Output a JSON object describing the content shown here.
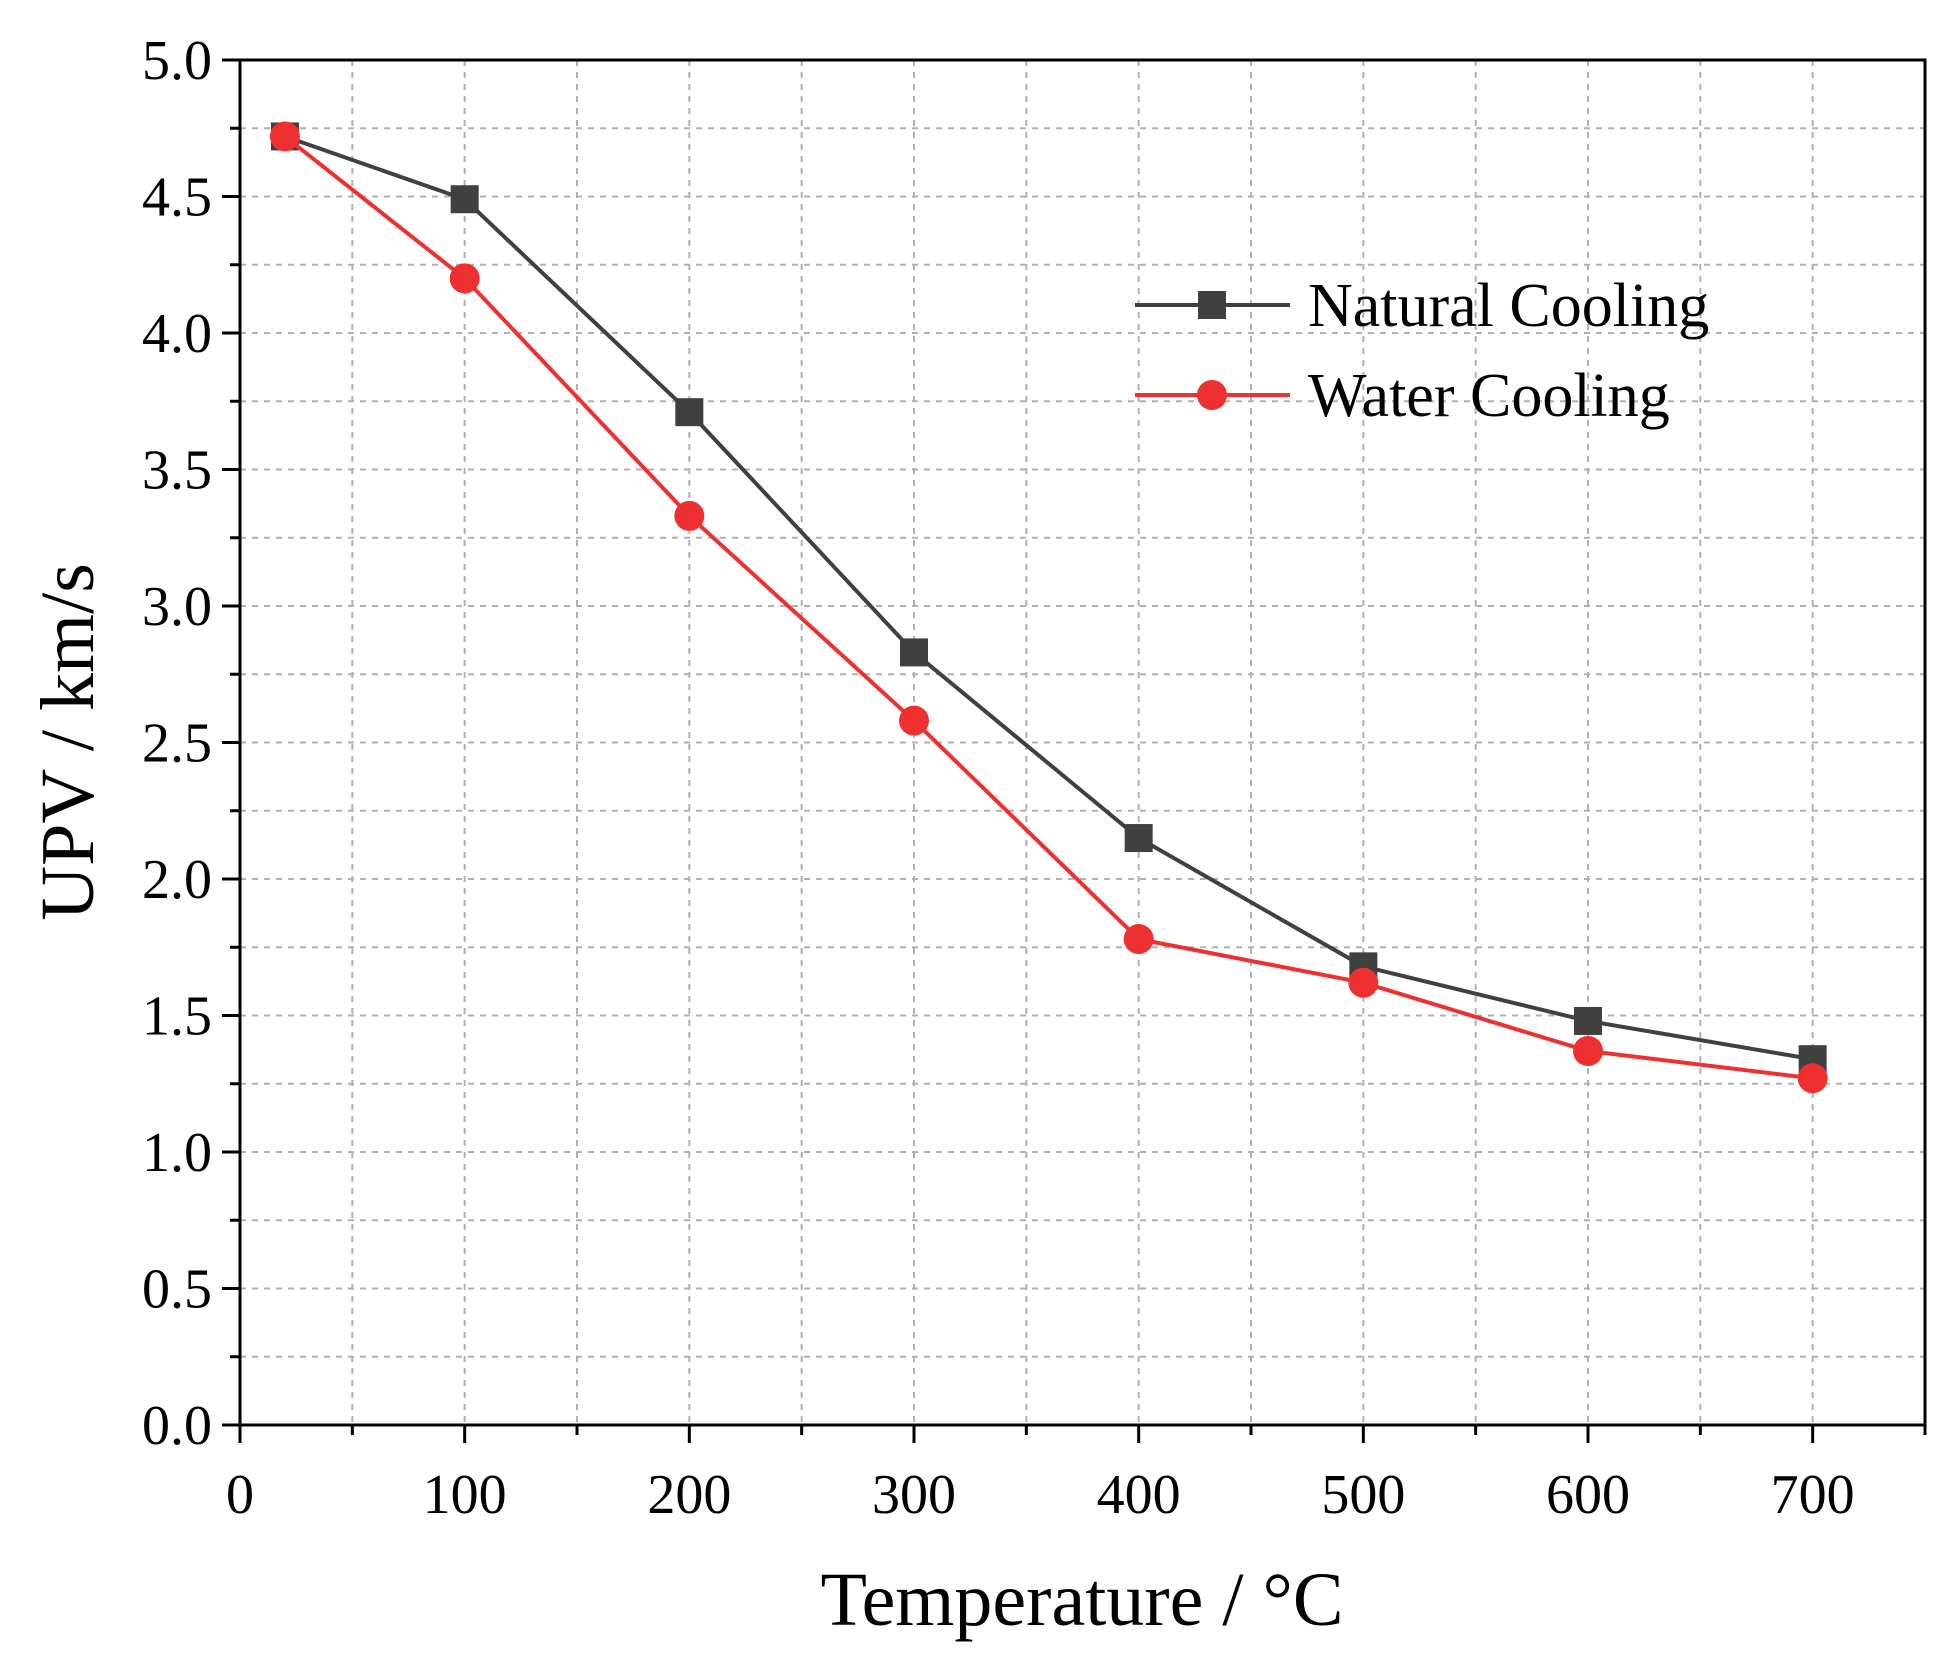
{
  "chart_data": {
    "type": "line",
    "xlabel": "Temperature / °C",
    "ylabel": "UPV / km/s",
    "xlim": [
      0,
      750
    ],
    "ylim": [
      0,
      5
    ],
    "xticks": [
      0,
      100,
      200,
      300,
      400,
      500,
      600,
      700
    ],
    "xtick_labels": [
      "0",
      "100",
      "200",
      "300",
      "400",
      "500",
      "600",
      "700"
    ],
    "yticks": [
      0,
      0.5,
      1,
      1.5,
      2,
      2.5,
      3,
      3.5,
      4,
      4.5,
      5
    ],
    "ytick_labels": [
      "0.0",
      "0.5",
      "1.0",
      "1.5",
      "2.0",
      "2.5",
      "3.0",
      "3.5",
      "4.0",
      "4.5",
      "5.0"
    ],
    "grid": true,
    "legend_position": "top-right",
    "series": [
      {
        "name": "Natural Cooling",
        "color": "#404040",
        "marker": "square",
        "x": [
          20,
          100,
          200,
          300,
          400,
          500,
          600,
          700
        ],
        "y": [
          4.72,
          4.49,
          3.71,
          2.83,
          2.15,
          1.68,
          1.48,
          1.34
        ]
      },
      {
        "name": "Water Cooling",
        "color": "#ee3030",
        "marker": "circle",
        "x": [
          20,
          100,
          200,
          300,
          400,
          500,
          600,
          700
        ],
        "y": [
          4.72,
          4.2,
          3.33,
          2.58,
          1.78,
          1.62,
          1.37,
          1.27
        ]
      }
    ]
  }
}
